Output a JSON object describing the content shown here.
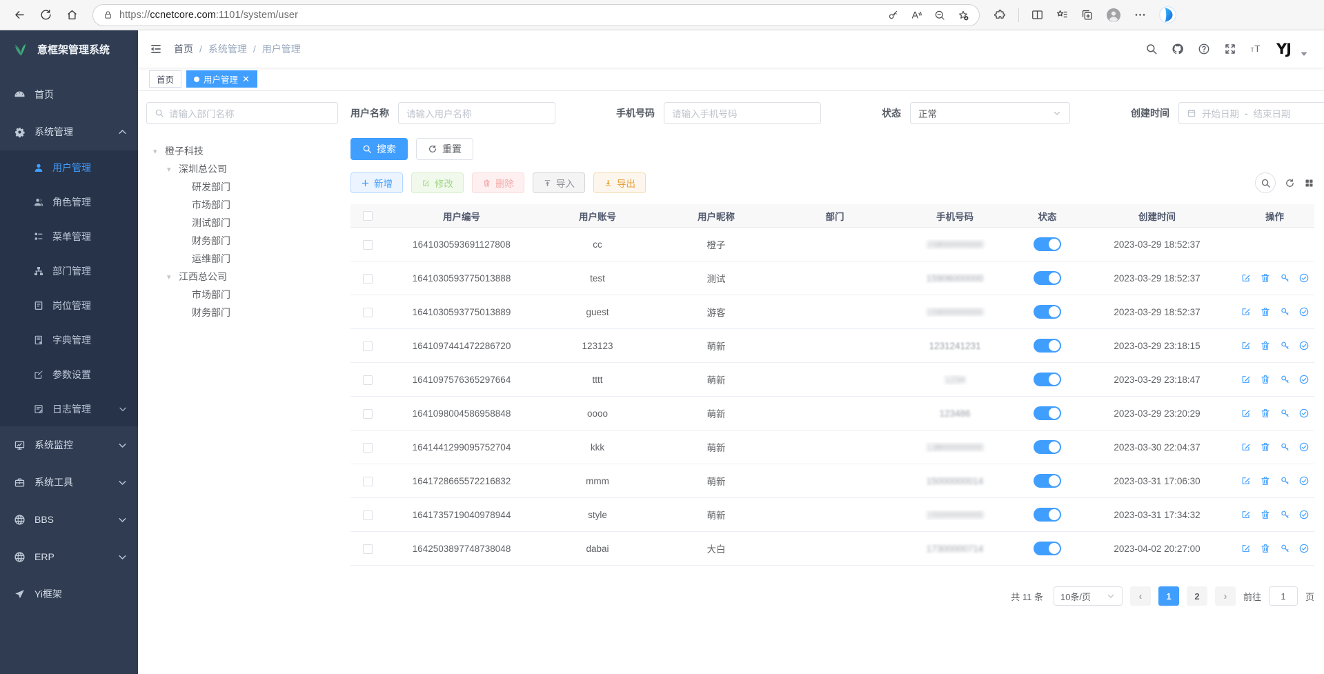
{
  "browser": {
    "url": {
      "scheme": "https://",
      "host": "ccnetcore.com",
      "path": ":1101/system/user"
    },
    "nav_icons": [
      "back-icon",
      "refresh-icon",
      "home-icon"
    ],
    "pill_icons": [
      "lock-icon",
      "key-icon",
      "read-aloud-icon",
      "zoom-out-icon",
      "favorite-add-icon"
    ],
    "bar_icons": [
      "extensions-icon",
      "split-screen-icon",
      "favorites-icon",
      "collections-icon",
      "profile-avatar",
      "more-menu-icon",
      "copilot-icon"
    ]
  },
  "sidebar": {
    "logo_title": "意框架管理系统",
    "logo_icon": "leaf-logo-icon",
    "menu": [
      {
        "label": "首页",
        "icon": "dashboard-icon"
      },
      {
        "label": "系统管理",
        "icon": "gear-icon",
        "expanded": true,
        "children": [
          {
            "label": "用户管理",
            "icon": "user-icon",
            "active": true
          },
          {
            "label": "角色管理",
            "icon": "role-icon"
          },
          {
            "label": "菜单管理",
            "icon": "menu-tree-icon"
          },
          {
            "label": "部门管理",
            "icon": "org-icon"
          },
          {
            "label": "岗位管理",
            "icon": "post-icon"
          },
          {
            "label": "字典管理",
            "icon": "dict-icon"
          },
          {
            "label": "参数设置",
            "icon": "param-icon"
          },
          {
            "label": "日志管理",
            "icon": "log-icon",
            "has_children": true
          }
        ]
      },
      {
        "label": "系统监控",
        "icon": "monitor-icon",
        "has_children": true
      },
      {
        "label": "系统工具",
        "icon": "toolbox-icon",
        "has_children": true
      },
      {
        "label": "BBS",
        "icon": "globe-icon",
        "has_children": true
      },
      {
        "label": "ERP",
        "icon": "globe-icon",
        "has_children": true
      },
      {
        "label": "Yi框架",
        "icon": "send-icon"
      }
    ]
  },
  "header": {
    "breadcrumb": [
      "首页",
      "系统管理",
      "用户管理"
    ],
    "right_icons": [
      "search-icon",
      "github-icon",
      "help-icon",
      "fullscreen-icon",
      "font-size-icon"
    ],
    "logo_text": "YJ"
  },
  "tabs": [
    {
      "label": "首页",
      "active": false
    },
    {
      "label": "用户管理",
      "active": true,
      "closable": true
    }
  ],
  "filters": {
    "dept_placeholder": "请输入部门名称",
    "username_label": "用户名称",
    "username_placeholder": "请输入用户名称",
    "phone_label": "手机号码",
    "phone_placeholder": "请输入手机号码",
    "status_label": "状态",
    "status_value": "正常",
    "created_label": "创建时间",
    "date_start": "开始日期",
    "date_sep": "-",
    "date_end": "结束日期",
    "search_label": "搜索",
    "reset_label": "重置"
  },
  "tree": [
    {
      "label": "橙子科技",
      "level": 0,
      "expandable": true
    },
    {
      "label": "深圳总公司",
      "level": 1,
      "expandable": true
    },
    {
      "label": "研发部门",
      "level": 2
    },
    {
      "label": "市场部门",
      "level": 2
    },
    {
      "label": "测试部门",
      "level": 2
    },
    {
      "label": "财务部门",
      "level": 2
    },
    {
      "label": "运维部门",
      "level": 2
    },
    {
      "label": "江西总公司",
      "level": 1,
      "expandable": true
    },
    {
      "label": "市场部门",
      "level": 2
    },
    {
      "label": "财务部门",
      "level": 2
    }
  ],
  "toolbar": {
    "add": "新增",
    "edit": "修改",
    "delete": "删除",
    "import": "导入",
    "export": "导出",
    "right_icons": [
      "search-circle-icon",
      "refresh-icon",
      "grid-icon"
    ]
  },
  "table": {
    "columns": [
      "用户编号",
      "用户账号",
      "用户昵称",
      "部门",
      "手机号码",
      "状态",
      "创建时间",
      "操作"
    ],
    "op_icons": [
      "edit-icon",
      "delete-icon",
      "reset-password-icon",
      "check-circle-icon"
    ],
    "rows": [
      {
        "id": "1641030593691127808",
        "account": "cc",
        "nickname": "橙子",
        "dept": "",
        "phone": "15800000000",
        "blur": 3,
        "status": true,
        "created": "2023-03-29 18:52:37",
        "ops": false
      },
      {
        "id": "1641030593775013888",
        "account": "test",
        "nickname": "测试",
        "dept": "",
        "phone": "15906000000",
        "blur": 2,
        "status": true,
        "created": "2023-03-29 18:52:37",
        "ops": true
      },
      {
        "id": "1641030593775013889",
        "account": "guest",
        "nickname": "游客",
        "dept": "",
        "phone": "15900000000",
        "blur": 3,
        "status": true,
        "created": "2023-03-29 18:52:37",
        "ops": true
      },
      {
        "id": "1641097441472286720",
        "account": "123123",
        "nickname": "萌新",
        "dept": "",
        "phone": "1231241231",
        "blur": 1,
        "status": true,
        "created": "2023-03-29 23:18:15",
        "ops": true
      },
      {
        "id": "1641097576365297664",
        "account": "tttt",
        "nickname": "萌新",
        "dept": "",
        "phone": "1234",
        "blur": 3,
        "status": true,
        "created": "2023-03-29 23:18:47",
        "ops": true
      },
      {
        "id": "1641098004586958848",
        "account": "oooo",
        "nickname": "萌新",
        "dept": "",
        "phone": "123486",
        "blur": 1.5,
        "status": true,
        "created": "2023-03-29 23:20:29",
        "ops": true
      },
      {
        "id": "1641441299095752704",
        "account": "kkk",
        "nickname": "萌新",
        "dept": "",
        "phone": "13800000000",
        "blur": 3,
        "status": true,
        "created": "2023-03-30 22:04:37",
        "ops": true
      },
      {
        "id": "1641728665572216832",
        "account": "mmm",
        "nickname": "萌新",
        "dept": "",
        "phone": "15000000014",
        "blur": 2,
        "status": true,
        "created": "2023-03-31 17:06:30",
        "ops": true
      },
      {
        "id": "1641735719040978944",
        "account": "style",
        "nickname": "萌新",
        "dept": "",
        "phone": "15000000000",
        "blur": 3,
        "status": true,
        "created": "2023-03-31 17:34:32",
        "ops": true
      },
      {
        "id": "1642503897748738048",
        "account": "dabai",
        "nickname": "大白",
        "dept": "",
        "phone": "17300000714",
        "blur": 2,
        "status": true,
        "created": "2023-04-02 20:27:00",
        "ops": true
      }
    ]
  },
  "pagination": {
    "total": "共 11 条",
    "page_size": "10条/页",
    "pages": [
      "1",
      "2"
    ],
    "active_page": "1",
    "goto_label": "前往",
    "goto_value": "1",
    "goto_unit": "页"
  },
  "colors": {
    "primary": "#409eff",
    "sidebar_bg": "#2f3c52",
    "submenu_bg": "#273349",
    "logo_green": "#3eaf7c"
  }
}
